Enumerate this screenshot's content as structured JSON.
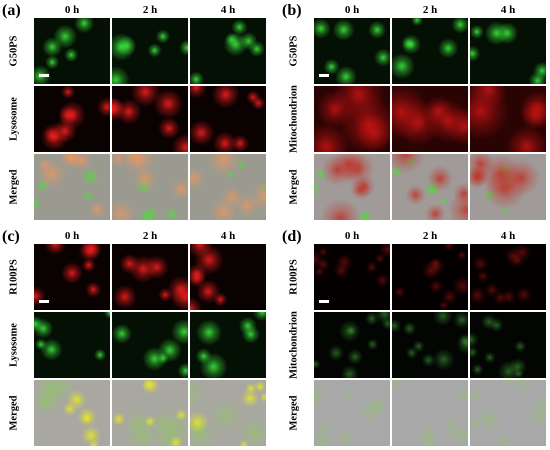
{
  "panels": [
    {
      "label": "(a)",
      "columns": [
        "0 h",
        "2 h",
        "4 h"
      ],
      "rows": [
        "G50PS",
        "Lysosome",
        "Merged"
      ]
    },
    {
      "label": "(b)",
      "columns": [
        "0 h",
        "2 h",
        "4 h"
      ],
      "rows": [
        "G50PS",
        "Mitochondrion",
        "Merged"
      ]
    },
    {
      "label": "(c)",
      "columns": [
        "0 h",
        "2 h",
        "4 h"
      ],
      "rows": [
        "R100PS",
        "Lysosome",
        "Merged"
      ]
    },
    {
      "label": "(d)",
      "columns": [
        "0 h",
        "2 h",
        "4 h"
      ],
      "rows": [
        "R100PS",
        "Mitochondrion",
        "Merged"
      ]
    }
  ]
}
